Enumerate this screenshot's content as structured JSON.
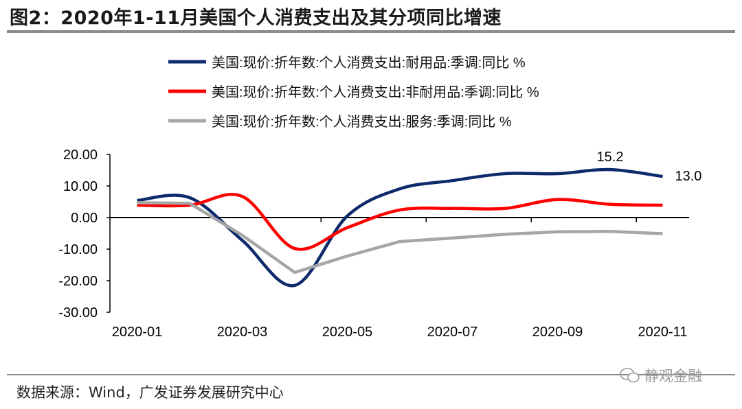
{
  "title": "图2：2020年1-11月美国个人消费支出及其分项同比增速",
  "source": "数据来源：Wind，广发证券发展研究中心",
  "watermark": "静观金融",
  "chart_data": {
    "type": "line",
    "categories": [
      "2020-01",
      "2020-02",
      "2020-03",
      "2020-04",
      "2020-05",
      "2020-06",
      "2020-07",
      "2020-08",
      "2020-09",
      "2020-10",
      "2020-11"
    ],
    "xtick_labels": [
      "2020-01",
      "2020-03",
      "2020-05",
      "2020-07",
      "2020-09",
      "2020-11"
    ],
    "ylim": [
      -30,
      20
    ],
    "yticks": [
      "20.00",
      "10.00",
      "0.00",
      "-10.00",
      "-20.00",
      "-30.00"
    ],
    "legend_position": "top",
    "series": [
      {
        "name": "美国:现价:折年数:个人消费支出:耐用品:季调:同比 %",
        "color": "#0d2a6b",
        "smooth": true,
        "values": [
          5.4,
          6.3,
          -7.2,
          -21.5,
          0.5,
          9.1,
          11.7,
          13.9,
          13.9,
          15.2,
          13.0
        ]
      },
      {
        "name": "美国:现价:折年数:个人消费支出:非耐用品:季调:同比 %",
        "color": "#ff0000",
        "smooth": true,
        "values": [
          3.9,
          3.9,
          6.7,
          -9.8,
          -3.2,
          2.4,
          2.9,
          2.9,
          5.7,
          4.2,
          3.9
        ]
      },
      {
        "name": "美国:现价:折年数:个人消费支出:服务:季调:同比 %",
        "color": "#a6a6a6",
        "smooth": false,
        "values": [
          4.7,
          4.5,
          -5.6,
          -17.4,
          -12.2,
          -7.6,
          -6.5,
          -5.3,
          -4.5,
          -4.4,
          -5.1
        ]
      }
    ],
    "annotations": [
      {
        "category": "2020-10",
        "text": "15.2"
      },
      {
        "category": "2020-11",
        "text": "13.0"
      }
    ]
  }
}
